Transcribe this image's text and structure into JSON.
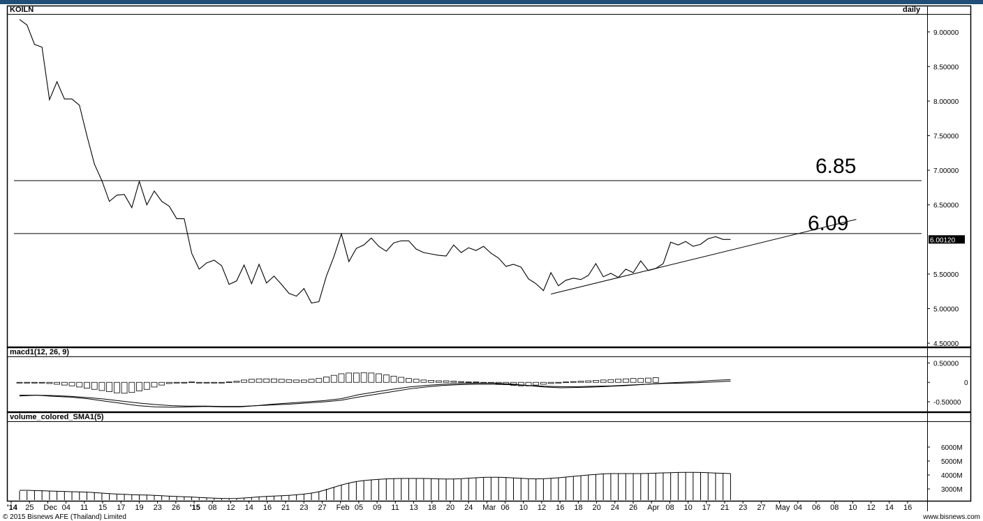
{
  "symbol": "KOILN",
  "period": "daily",
  "footer": {
    "copyright": "© 2015 Bisnews AFE (Thailand) Limited",
    "site": "www.bisnews.com"
  },
  "colors": {
    "line": "#000000",
    "frame": "#000000",
    "grid": "#000000",
    "topbar": "#1f4e79"
  },
  "chart_data": [
    {
      "type": "line",
      "panel": "price",
      "title": "KOILN",
      "subtitle": "daily",
      "ylim": [
        4.45,
        9.25
      ],
      "yticks": [
        {
          "value": 9.0,
          "label": "9.00000"
        },
        {
          "value": 8.5,
          "label": "8.50000"
        },
        {
          "value": 8.0,
          "label": "8.00000"
        },
        {
          "value": 7.5,
          "label": "7.50000"
        },
        {
          "value": 7.0,
          "label": "7.00000"
        },
        {
          "value": 6.5,
          "label": "6.50000"
        },
        {
          "value": 5.5,
          "label": "5.50000"
        },
        {
          "value": 5.0,
          "label": "5.00000"
        },
        {
          "value": 4.5,
          "label": "4.50000"
        }
      ],
      "last_value": 6.0,
      "last_label": "6.00120",
      "values": [
        9.18,
        9.1,
        8.82,
        8.78,
        8.02,
        8.28,
        8.03,
        8.03,
        7.94,
        7.5,
        7.09,
        6.85,
        6.55,
        6.64,
        6.65,
        6.46,
        6.84,
        6.5,
        6.7,
        6.55,
        6.48,
        6.3,
        6.3,
        5.8,
        5.57,
        5.66,
        5.7,
        5.62,
        5.35,
        5.4,
        5.63,
        5.36,
        5.64,
        5.37,
        5.47,
        5.35,
        5.22,
        5.18,
        5.29,
        5.08,
        5.1,
        5.47,
        5.75,
        6.08,
        5.68,
        5.87,
        5.92,
        6.02,
        5.9,
        5.83,
        5.95,
        5.98,
        5.98,
        5.86,
        5.81,
        5.79,
        5.77,
        5.76,
        5.92,
        5.81,
        5.88,
        5.84,
        5.9,
        5.8,
        5.73,
        5.61,
        5.64,
        5.6,
        5.43,
        5.36,
        5.26,
        5.52,
        5.33,
        5.41,
        5.44,
        5.42,
        5.48,
        5.65,
        5.46,
        5.51,
        5.45,
        5.57,
        5.52,
        5.69,
        5.55,
        5.58,
        5.65,
        5.96,
        5.92,
        5.97,
        5.9,
        5.93,
        6.01,
        6.04,
        6.0,
        6.0
      ],
      "horizontal_lines": [
        {
          "value": 6.85,
          "label": "6.85"
        },
        {
          "value": 6.085,
          "label": "6.09"
        }
      ],
      "trendline": {
        "start": {
          "index": 71,
          "value": 5.21
        },
        "end": {
          "index": 111.8,
          "value": 6.29
        }
      }
    },
    {
      "type": "bar",
      "panel": "macd",
      "title": "macd1(12, 26, 9)",
      "ylim": [
        -0.75,
        0.65
      ],
      "yticks": [
        {
          "value": 0.5,
          "label": "0.50000"
        },
        {
          "value": 0.0,
          "label": "0"
        },
        {
          "value": -0.5,
          "label": "-0.50000"
        }
      ],
      "histogram": [
        0,
        0,
        0,
        0,
        -0.03,
        -0.05,
        -0.07,
        -0.09,
        -0.12,
        -0.15,
        -0.18,
        -0.21,
        -0.24,
        -0.27,
        -0.28,
        -0.26,
        -0.22,
        -0.18,
        -0.12,
        -0.07,
        -0.03,
        0,
        0,
        0.01,
        0.0,
        -0.01,
        -0.01,
        0,
        0.01,
        0.03,
        0.06,
        0.08,
        0.09,
        0.09,
        0.09,
        0.08,
        0.07,
        0.06,
        0.06,
        0.08,
        0.1,
        0.14,
        0.18,
        0.22,
        0.24,
        0.24,
        0.25,
        0.24,
        0.22,
        0.19,
        0.16,
        0.13,
        0.1,
        0.08,
        0.06,
        0.05,
        0.04,
        0.04,
        0.03,
        0.02,
        0.01,
        0.01,
        0.0,
        -0.02,
        -0.04,
        -0.06,
        -0.08,
        -0.09,
        -0.09,
        -0.07,
        -0.05,
        -0.03,
        -0.01,
        0.01,
        0.02,
        0.03,
        0.04,
        0.05,
        0.06,
        0.07,
        0.08,
        0.09,
        0.1,
        0.1,
        0.11,
        0.12
      ],
      "macd_line": [
        -0.35,
        -0.33,
        -0.36,
        -0.38,
        -0.42,
        -0.48,
        -0.54,
        -0.6,
        -0.63,
        -0.64,
        -0.63,
        -0.62,
        -0.63,
        -0.63,
        -0.6,
        -0.56,
        -0.53,
        -0.5,
        -0.47,
        -0.42,
        -0.32,
        -0.25,
        -0.18,
        -0.12,
        -0.08,
        -0.05,
        -0.03,
        -0.02,
        -0.02,
        -0.04,
        -0.08,
        -0.12,
        -0.14,
        -0.13,
        -0.12,
        -0.1,
        -0.08,
        -0.05,
        -0.02,
        0.0,
        0.02,
        0.05,
        0.07
      ],
      "signal_line": [
        -0.33,
        -0.33,
        -0.34,
        -0.36,
        -0.39,
        -0.43,
        -0.48,
        -0.53,
        -0.57,
        -0.6,
        -0.61,
        -0.61,
        -0.62,
        -0.62,
        -0.6,
        -0.58,
        -0.56,
        -0.53,
        -0.5,
        -0.46,
        -0.38,
        -0.31,
        -0.24,
        -0.17,
        -0.12,
        -0.08,
        -0.06,
        -0.05,
        -0.05,
        -0.06,
        -0.08,
        -0.1,
        -0.11,
        -0.11,
        -0.1,
        -0.09,
        -0.07,
        -0.05,
        -0.03,
        -0.02,
        -0.01,
        0.01,
        0.03
      ]
    },
    {
      "type": "bar",
      "panel": "volume",
      "title": "volume_colored_SMA1(5)",
      "unit": "M",
      "ylim": [
        2200,
        7800
      ],
      "yticks": [
        {
          "value": 6000,
          "label": "6000M"
        },
        {
          "value": 5000,
          "label": "5000M"
        },
        {
          "value": 4000,
          "label": "4000M"
        },
        {
          "value": 3000,
          "label": "3000M"
        }
      ],
      "values": [
        2850,
        2850,
        2880,
        2900,
        2850,
        2830,
        2820,
        2800,
        2800,
        2780,
        2760,
        2700,
        2650,
        2600,
        2600,
        2600,
        2550,
        2550,
        2550,
        2520,
        2480,
        2450,
        2450,
        2450,
        2400,
        2350,
        2350,
        2300,
        2300,
        2300,
        2350,
        2400,
        2450,
        2450,
        2500,
        2500,
        2550,
        2600,
        2650,
        2700,
        2800,
        3000,
        3150,
        3300,
        3450,
        3550,
        3600,
        3650,
        3700,
        3750,
        3750,
        3750,
        3750,
        3750,
        3750,
        3750,
        3750,
        3700,
        3700,
        3700,
        3750,
        3800,
        3800,
        3850,
        3850,
        3850,
        3800,
        3800,
        3750,
        3750,
        3700,
        3750,
        3800,
        3850,
        3900,
        3950,
        4000,
        4050,
        4100,
        4100,
        4100,
        4100,
        4100,
        4100,
        4100,
        4150,
        4150,
        4150,
        4200,
        4200,
        4200,
        4200,
        4150,
        4150,
        4100,
        4100
      ],
      "sma": [
        2900,
        2900,
        2880,
        2870,
        2850,
        2830,
        2820,
        2800,
        2790,
        2770,
        2740,
        2700,
        2660,
        2630,
        2610,
        2590,
        2570,
        2560,
        2540,
        2510,
        2480,
        2460,
        2440,
        2420,
        2390,
        2360,
        2340,
        2320,
        2310,
        2320,
        2350,
        2390,
        2430,
        2460,
        2490,
        2510,
        2540,
        2580,
        2630,
        2700,
        2800,
        2950,
        3120,
        3280,
        3420,
        3530,
        3600,
        3650,
        3690,
        3720,
        3740,
        3750,
        3750,
        3750,
        3750,
        3740,
        3720,
        3710,
        3710,
        3730,
        3770,
        3800,
        3830,
        3840,
        3840,
        3820,
        3790,
        3760,
        3730,
        3720,
        3730,
        3760,
        3800,
        3850,
        3900,
        3950,
        4000,
        4040,
        4080,
        4100,
        4100,
        4100,
        4100,
        4100,
        4110,
        4130,
        4150,
        4160,
        4180,
        4190,
        4190,
        4180,
        4160,
        4140,
        4120,
        4100
      ]
    }
  ],
  "x_axis": {
    "labels": [
      "'14",
      "25",
      "Dec",
      "04",
      "11",
      "15",
      "17",
      "19",
      "23",
      "26",
      "'15",
      "08",
      "12",
      "14",
      "16",
      "21",
      "23",
      "27",
      "Feb",
      "05",
      "09",
      "11",
      "13",
      "18",
      "20",
      "24",
      "Mar",
      "06",
      "10",
      "12",
      "16",
      "18",
      "20",
      "24",
      "26",
      "Apr",
      "08",
      "10",
      "17",
      "21",
      "23",
      "27",
      "May",
      "04",
      "06",
      "08",
      "10",
      "12",
      "14",
      "16"
    ],
    "bold_labels": [
      "'14",
      "'15"
    ]
  }
}
